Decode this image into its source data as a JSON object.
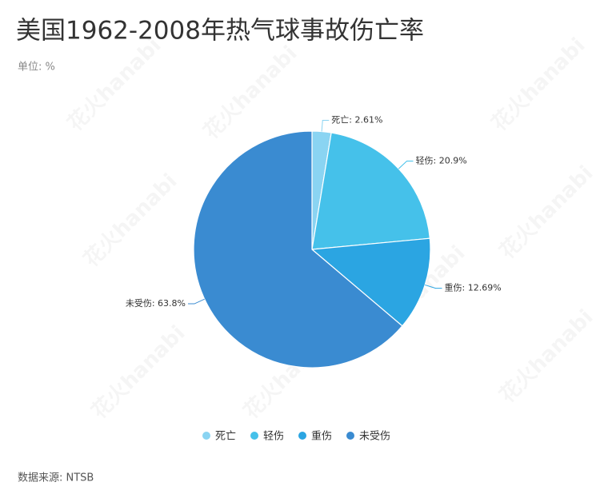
{
  "chart_data": {
    "type": "pie",
    "title": "美国1962-2008年热气球事故伤亡率",
    "subtitle": "单位: %",
    "source": "数据来源: NTSB",
    "watermark": "花火hanabi",
    "categories": [
      "死亡",
      "轻伤",
      "重伤",
      "未受伤"
    ],
    "values": [
      2.61,
      20.9,
      12.69,
      63.8
    ],
    "value_labels": [
      "死亡: 2.61%",
      "轻伤: 20.9%",
      "重伤: 12.69%",
      "未受伤: 63.8%"
    ],
    "colors": [
      "#8ad4f2",
      "#45c1ea",
      "#2ba5e2",
      "#3a8bd1"
    ],
    "legend": "bottom"
  }
}
